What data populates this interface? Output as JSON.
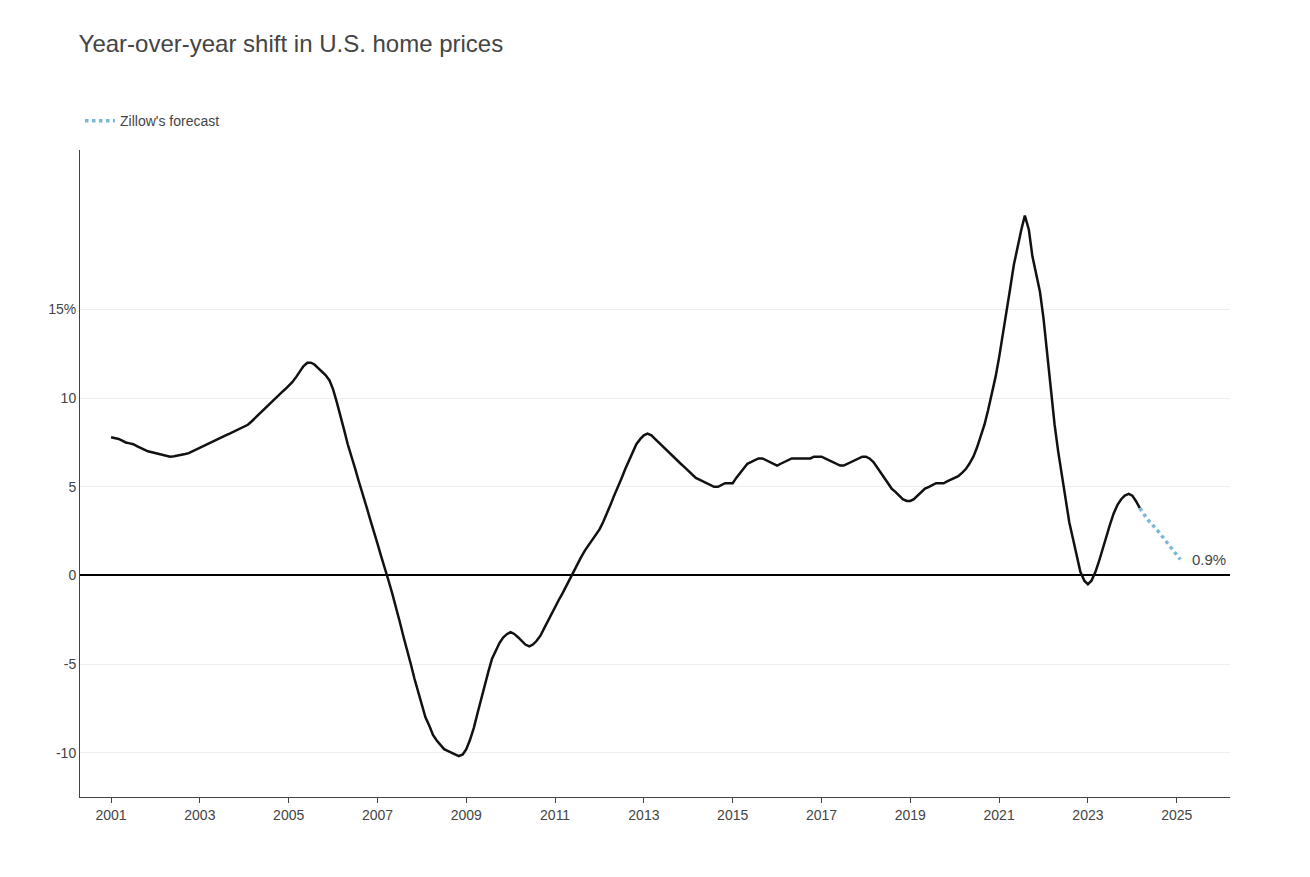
{
  "chart_data": {
    "type": "line",
    "title": "Year-over-year shift in U.S. home prices",
    "xlim": [
      2000.3,
      2026.2
    ],
    "xticks": [
      2001,
      2003,
      2005,
      2007,
      2009,
      2011,
      2013,
      2015,
      2017,
      2019,
      2021,
      2023,
      2025
    ],
    "ylim": [
      -12.5,
      24
    ],
    "yticks": [
      -10,
      -5,
      0,
      5,
      10,
      {
        "value": 15,
        "label": "15%"
      }
    ],
    "grid": "y",
    "legend": "upper left",
    "series": [
      {
        "color": "#111111",
        "line_style": "solid",
        "x": [
          2001.0,
          2001.08,
          2001.17,
          2001.25,
          2001.33,
          2001.42,
          2001.5,
          2001.58,
          2001.67,
          2001.75,
          2001.83,
          2001.92,
          2002.0,
          2002.08,
          2002.17,
          2002.25,
          2002.33,
          2002.42,
          2002.5,
          2002.58,
          2002.67,
          2002.75,
          2002.83,
          2002.92,
          2003.0,
          2003.08,
          2003.17,
          2003.25,
          2003.33,
          2003.42,
          2003.5,
          2003.58,
          2003.67,
          2003.75,
          2003.83,
          2003.92,
          2004.0,
          2004.08,
          2004.17,
          2004.25,
          2004.33,
          2004.42,
          2004.5,
          2004.58,
          2004.67,
          2004.75,
          2004.83,
          2004.92,
          2005.0,
          2005.08,
          2005.17,
          2005.25,
          2005.33,
          2005.42,
          2005.5,
          2005.58,
          2005.67,
          2005.75,
          2005.83,
          2005.92,
          2006.0,
          2006.08,
          2006.17,
          2006.25,
          2006.33,
          2006.42,
          2006.5,
          2006.58,
          2006.67,
          2006.75,
          2006.83,
          2006.92,
          2007.0,
          2007.08,
          2007.17,
          2007.25,
          2007.33,
          2007.42,
          2007.5,
          2007.58,
          2007.67,
          2007.75,
          2007.83,
          2007.92,
          2008.0,
          2008.08,
          2008.17,
          2008.25,
          2008.33,
          2008.42,
          2008.5,
          2008.58,
          2008.67,
          2008.75,
          2008.83,
          2008.92,
          2009.0,
          2009.08,
          2009.17,
          2009.25,
          2009.33,
          2009.42,
          2009.5,
          2009.58,
          2009.67,
          2009.75,
          2009.83,
          2009.92,
          2010.0,
          2010.08,
          2010.17,
          2010.25,
          2010.33,
          2010.42,
          2010.5,
          2010.58,
          2010.67,
          2010.75,
          2010.83,
          2010.92,
          2011.0,
          2011.08,
          2011.17,
          2011.25,
          2011.33,
          2011.42,
          2011.5,
          2011.58,
          2011.67,
          2011.75,
          2011.83,
          2011.92,
          2012.0,
          2012.08,
          2012.17,
          2012.25,
          2012.33,
          2012.42,
          2012.5,
          2012.58,
          2012.67,
          2012.75,
          2012.83,
          2012.92,
          2013.0,
          2013.08,
          2013.17,
          2013.25,
          2013.33,
          2013.42,
          2013.5,
          2013.58,
          2013.67,
          2013.75,
          2013.83,
          2013.92,
          2014.0,
          2014.08,
          2014.17,
          2014.25,
          2014.33,
          2014.42,
          2014.5,
          2014.58,
          2014.67,
          2014.75,
          2014.83,
          2014.92,
          2015.0,
          2015.08,
          2015.17,
          2015.25,
          2015.33,
          2015.42,
          2015.5,
          2015.58,
          2015.67,
          2015.75,
          2015.83,
          2015.92,
          2016.0,
          2016.08,
          2016.17,
          2016.25,
          2016.33,
          2016.42,
          2016.5,
          2016.58,
          2016.67,
          2016.75,
          2016.83,
          2016.92,
          2017.0,
          2017.08,
          2017.17,
          2017.25,
          2017.33,
          2017.42,
          2017.5,
          2017.58,
          2017.67,
          2017.75,
          2017.83,
          2017.92,
          2018.0,
          2018.08,
          2018.17,
          2018.25,
          2018.33,
          2018.42,
          2018.5,
          2018.58,
          2018.67,
          2018.75,
          2018.83,
          2018.92,
          2019.0,
          2019.08,
          2019.17,
          2019.25,
          2019.33,
          2019.42,
          2019.5,
          2019.58,
          2019.67,
          2019.75,
          2019.83,
          2019.92,
          2020.0,
          2020.08,
          2020.17,
          2020.25,
          2020.33,
          2020.42,
          2020.5,
          2020.58,
          2020.67,
          2020.75,
          2020.83,
          2020.92,
          2021.0,
          2021.08,
          2021.17,
          2021.25,
          2021.33,
          2021.42,
          2021.5,
          2021.58,
          2021.67,
          2021.75,
          2021.83,
          2021.92,
          2022.0,
          2022.08,
          2022.17,
          2022.25,
          2022.33,
          2022.42,
          2022.5,
          2022.58,
          2022.67,
          2022.75,
          2022.83,
          2022.92,
          2023.0,
          2023.08,
          2023.17,
          2023.25,
          2023.33,
          2023.42,
          2023.5,
          2023.58,
          2023.67,
          2023.75,
          2023.83,
          2023.92,
          2024.0,
          2024.08,
          2024.17
        ],
        "values": [
          7.8,
          7.75,
          7.7,
          7.6,
          7.5,
          7.45,
          7.4,
          7.3,
          7.2,
          7.1,
          7.0,
          6.95,
          6.9,
          6.85,
          6.8,
          6.75,
          6.7,
          6.72,
          6.75,
          6.8,
          6.85,
          6.9,
          7.0,
          7.1,
          7.2,
          7.3,
          7.4,
          7.5,
          7.6,
          7.7,
          7.8,
          7.9,
          8.0,
          8.1,
          8.2,
          8.3,
          8.4,
          8.5,
          8.7,
          8.9,
          9.1,
          9.3,
          9.5,
          9.7,
          9.9,
          10.1,
          10.3,
          10.5,
          10.7,
          10.9,
          11.2,
          11.5,
          11.8,
          12.0,
          12.0,
          11.9,
          11.7,
          11.5,
          11.3,
          11.0,
          10.5,
          9.8,
          9.0,
          8.2,
          7.4,
          6.7,
          6.0,
          5.3,
          4.6,
          3.9,
          3.2,
          2.5,
          1.8,
          1.1,
          0.4,
          -0.3,
          -1.0,
          -1.8,
          -2.6,
          -3.4,
          -4.2,
          -5.0,
          -5.8,
          -6.6,
          -7.4,
          -8.0,
          -8.5,
          -9.0,
          -9.3,
          -9.6,
          -9.8,
          -9.9,
          -10.0,
          -10.1,
          -10.2,
          -10.1,
          -9.8,
          -9.3,
          -8.6,
          -7.8,
          -7.0,
          -6.2,
          -5.4,
          -4.7,
          -4.2,
          -3.8,
          -3.5,
          -3.3,
          -3.2,
          -3.3,
          -3.5,
          -3.7,
          -3.9,
          -4.0,
          -3.9,
          -3.7,
          -3.4,
          -3.0,
          -2.6,
          -2.2,
          -1.8,
          -1.4,
          -1.0,
          -0.6,
          -0.2,
          0.2,
          0.6,
          1.0,
          1.4,
          1.7,
          2.0,
          2.3,
          2.6,
          3.0,
          3.5,
          4.0,
          4.5,
          5.0,
          5.5,
          6.0,
          6.5,
          7.0,
          7.4,
          7.7,
          7.9,
          8.0,
          7.9,
          7.7,
          7.5,
          7.3,
          7.1,
          6.9,
          6.7,
          6.5,
          6.3,
          6.1,
          5.9,
          5.7,
          5.5,
          5.4,
          5.3,
          5.2,
          5.1,
          5.0,
          5.0,
          5.1,
          5.2,
          5.2,
          5.2,
          5.5,
          5.8,
          6.1,
          6.3,
          6.4,
          6.5,
          6.6,
          6.6,
          6.5,
          6.4,
          6.3,
          6.2,
          6.3,
          6.4,
          6.5,
          6.6,
          6.6,
          6.6,
          6.6,
          6.6,
          6.6,
          6.7,
          6.7,
          6.7,
          6.6,
          6.5,
          6.4,
          6.3,
          6.2,
          6.2,
          6.3,
          6.4,
          6.5,
          6.6,
          6.7,
          6.7,
          6.6,
          6.4,
          6.1,
          5.8,
          5.5,
          5.2,
          4.9,
          4.7,
          4.5,
          4.3,
          4.2,
          4.2,
          4.3,
          4.5,
          4.7,
          4.9,
          5.0,
          5.1,
          5.2,
          5.2,
          5.2,
          5.3,
          5.4,
          5.5,
          5.6,
          5.8,
          6.0,
          6.3,
          6.7,
          7.2,
          7.8,
          8.5,
          9.3,
          10.2,
          11.2,
          12.3,
          13.5,
          14.8,
          16.2,
          17.5,
          18.6,
          19.5,
          20.3,
          19.5,
          18.0,
          17.0,
          16.0,
          14.5,
          12.5,
          10.5,
          8.5,
          7.0,
          5.5,
          4.2,
          3.0,
          2.0,
          1.0,
          0.2,
          -0.3,
          -0.5,
          -0.3,
          0.2,
          0.8,
          1.5,
          2.2,
          2.9,
          3.5,
          4.0,
          4.3,
          4.5,
          4.6,
          4.5,
          4.2,
          3.8
        ]
      },
      {
        "name": "Zillow's forecast",
        "color": "#7ab8d9",
        "line_style": "dotted",
        "x": [
          2024.17,
          2024.33,
          2024.58,
          2024.83,
          2025.08
        ],
        "values": [
          3.8,
          3.2,
          2.5,
          1.7,
          0.9
        ]
      }
    ],
    "annotations": [
      {
        "text": "0.9%",
        "x": 2025.08,
        "y": 0.9
      }
    ]
  }
}
